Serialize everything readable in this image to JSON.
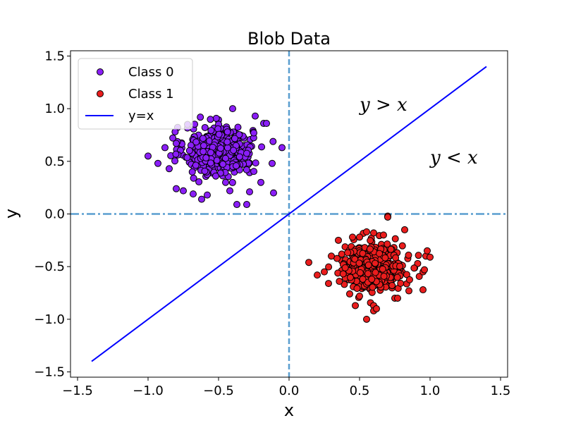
{
  "chart_data": {
    "type": "scatter",
    "title": "Blob Data",
    "xlabel": "x",
    "ylabel": "y",
    "xlim": [
      -1.55,
      1.55
    ],
    "ylim": [
      -1.55,
      1.55
    ],
    "xticks": [
      -1.5,
      -1.0,
      -0.5,
      0.0,
      0.5,
      1.0,
      1.5
    ],
    "yticks": [
      -1.5,
      -1.0,
      -0.5,
      0.0,
      0.5,
      1.0,
      1.5
    ],
    "xtick_labels": [
      "−1.5",
      "−1.0",
      "−0.5",
      "0.0",
      "0.5",
      "1.0",
      "1.5"
    ],
    "ytick_labels": [
      "−1.5",
      "−1.0",
      "−0.5",
      "0.0",
      "0.5",
      "1.0",
      "1.5"
    ],
    "grid": false,
    "legend_position": "top-left",
    "series": [
      {
        "name": "Class 0",
        "kind": "scatter",
        "color": "#8a1ef7",
        "edgecolor": "#000000",
        "center": [
          -0.5,
          0.6
        ],
        "spread": 0.12,
        "count": 500,
        "points": [
          [
            -1.0,
            0.55
          ],
          [
            -0.93,
            0.48
          ],
          [
            -0.88,
            0.63
          ],
          [
            -0.8,
            0.24
          ],
          [
            -0.75,
            0.22
          ],
          [
            -0.72,
            0.85
          ],
          [
            -0.68,
            0.19
          ],
          [
            -0.62,
            0.14
          ],
          [
            -0.58,
            0.18
          ],
          [
            -0.52,
            0.36
          ],
          [
            -0.45,
            0.3
          ],
          [
            -0.4,
            1.0
          ],
          [
            -0.42,
            0.22
          ],
          [
            -0.37,
            0.09
          ],
          [
            -0.3,
            0.09
          ],
          [
            -0.28,
            0.21
          ],
          [
            -0.24,
            0.93
          ],
          [
            -0.2,
            0.3
          ],
          [
            -0.18,
            0.86
          ],
          [
            -0.16,
            0.86
          ],
          [
            -0.12,
            0.48
          ],
          [
            -0.11,
            0.2
          ],
          [
            -0.05,
            0.63
          ],
          [
            -0.85,
            0.43
          ],
          [
            -0.8,
            0.67
          ],
          [
            -0.25,
            0.77
          ]
        ]
      },
      {
        "name": "Class 1",
        "kind": "scatter",
        "color": "#ea1d1d",
        "edgecolor": "#000000",
        "center": [
          0.6,
          -0.5
        ],
        "spread": 0.11,
        "count": 500,
        "points": [
          [
            0.14,
            -0.46
          ],
          [
            0.2,
            -0.58
          ],
          [
            0.25,
            -0.55
          ],
          [
            0.28,
            -0.66
          ],
          [
            0.3,
            -0.4
          ],
          [
            0.35,
            -0.25
          ],
          [
            0.45,
            -0.22
          ],
          [
            0.5,
            -0.22
          ],
          [
            0.55,
            -0.17
          ],
          [
            0.6,
            -0.18
          ],
          [
            0.67,
            -0.2
          ],
          [
            0.7,
            -0.02
          ],
          [
            0.7,
            -0.03
          ],
          [
            0.82,
            -0.15
          ],
          [
            0.5,
            -0.78
          ],
          [
            0.47,
            -0.87
          ],
          [
            0.55,
            -1.0
          ],
          [
            0.6,
            -0.87
          ],
          [
            0.6,
            -0.92
          ],
          [
            0.62,
            -0.9
          ],
          [
            0.75,
            -0.8
          ],
          [
            0.77,
            -0.8
          ],
          [
            0.85,
            -0.73
          ],
          [
            0.95,
            -0.72
          ],
          [
            0.97,
            -0.4
          ],
          [
            1.0,
            -0.41
          ],
          [
            0.95,
            -0.55
          ],
          [
            0.96,
            -0.53
          ],
          [
            0.98,
            -0.35
          ]
        ]
      },
      {
        "name": "y=x",
        "kind": "line",
        "color": "#0000ff",
        "x": [
          -1.4,
          1.4
        ],
        "y": [
          -1.4,
          1.4
        ]
      }
    ],
    "reference_lines": [
      {
        "orientation": "vertical",
        "value": 0.0,
        "style": "dashed",
        "color": "#5a9ecf"
      },
      {
        "orientation": "horizontal",
        "value": 0.0,
        "style": "dash-dot",
        "color": "#5a9ecf"
      }
    ],
    "annotations": [
      {
        "text": "y > x",
        "x": 0.5,
        "y": 0.98
      },
      {
        "text": "y < x",
        "x": 1.0,
        "y": 0.48
      }
    ]
  }
}
